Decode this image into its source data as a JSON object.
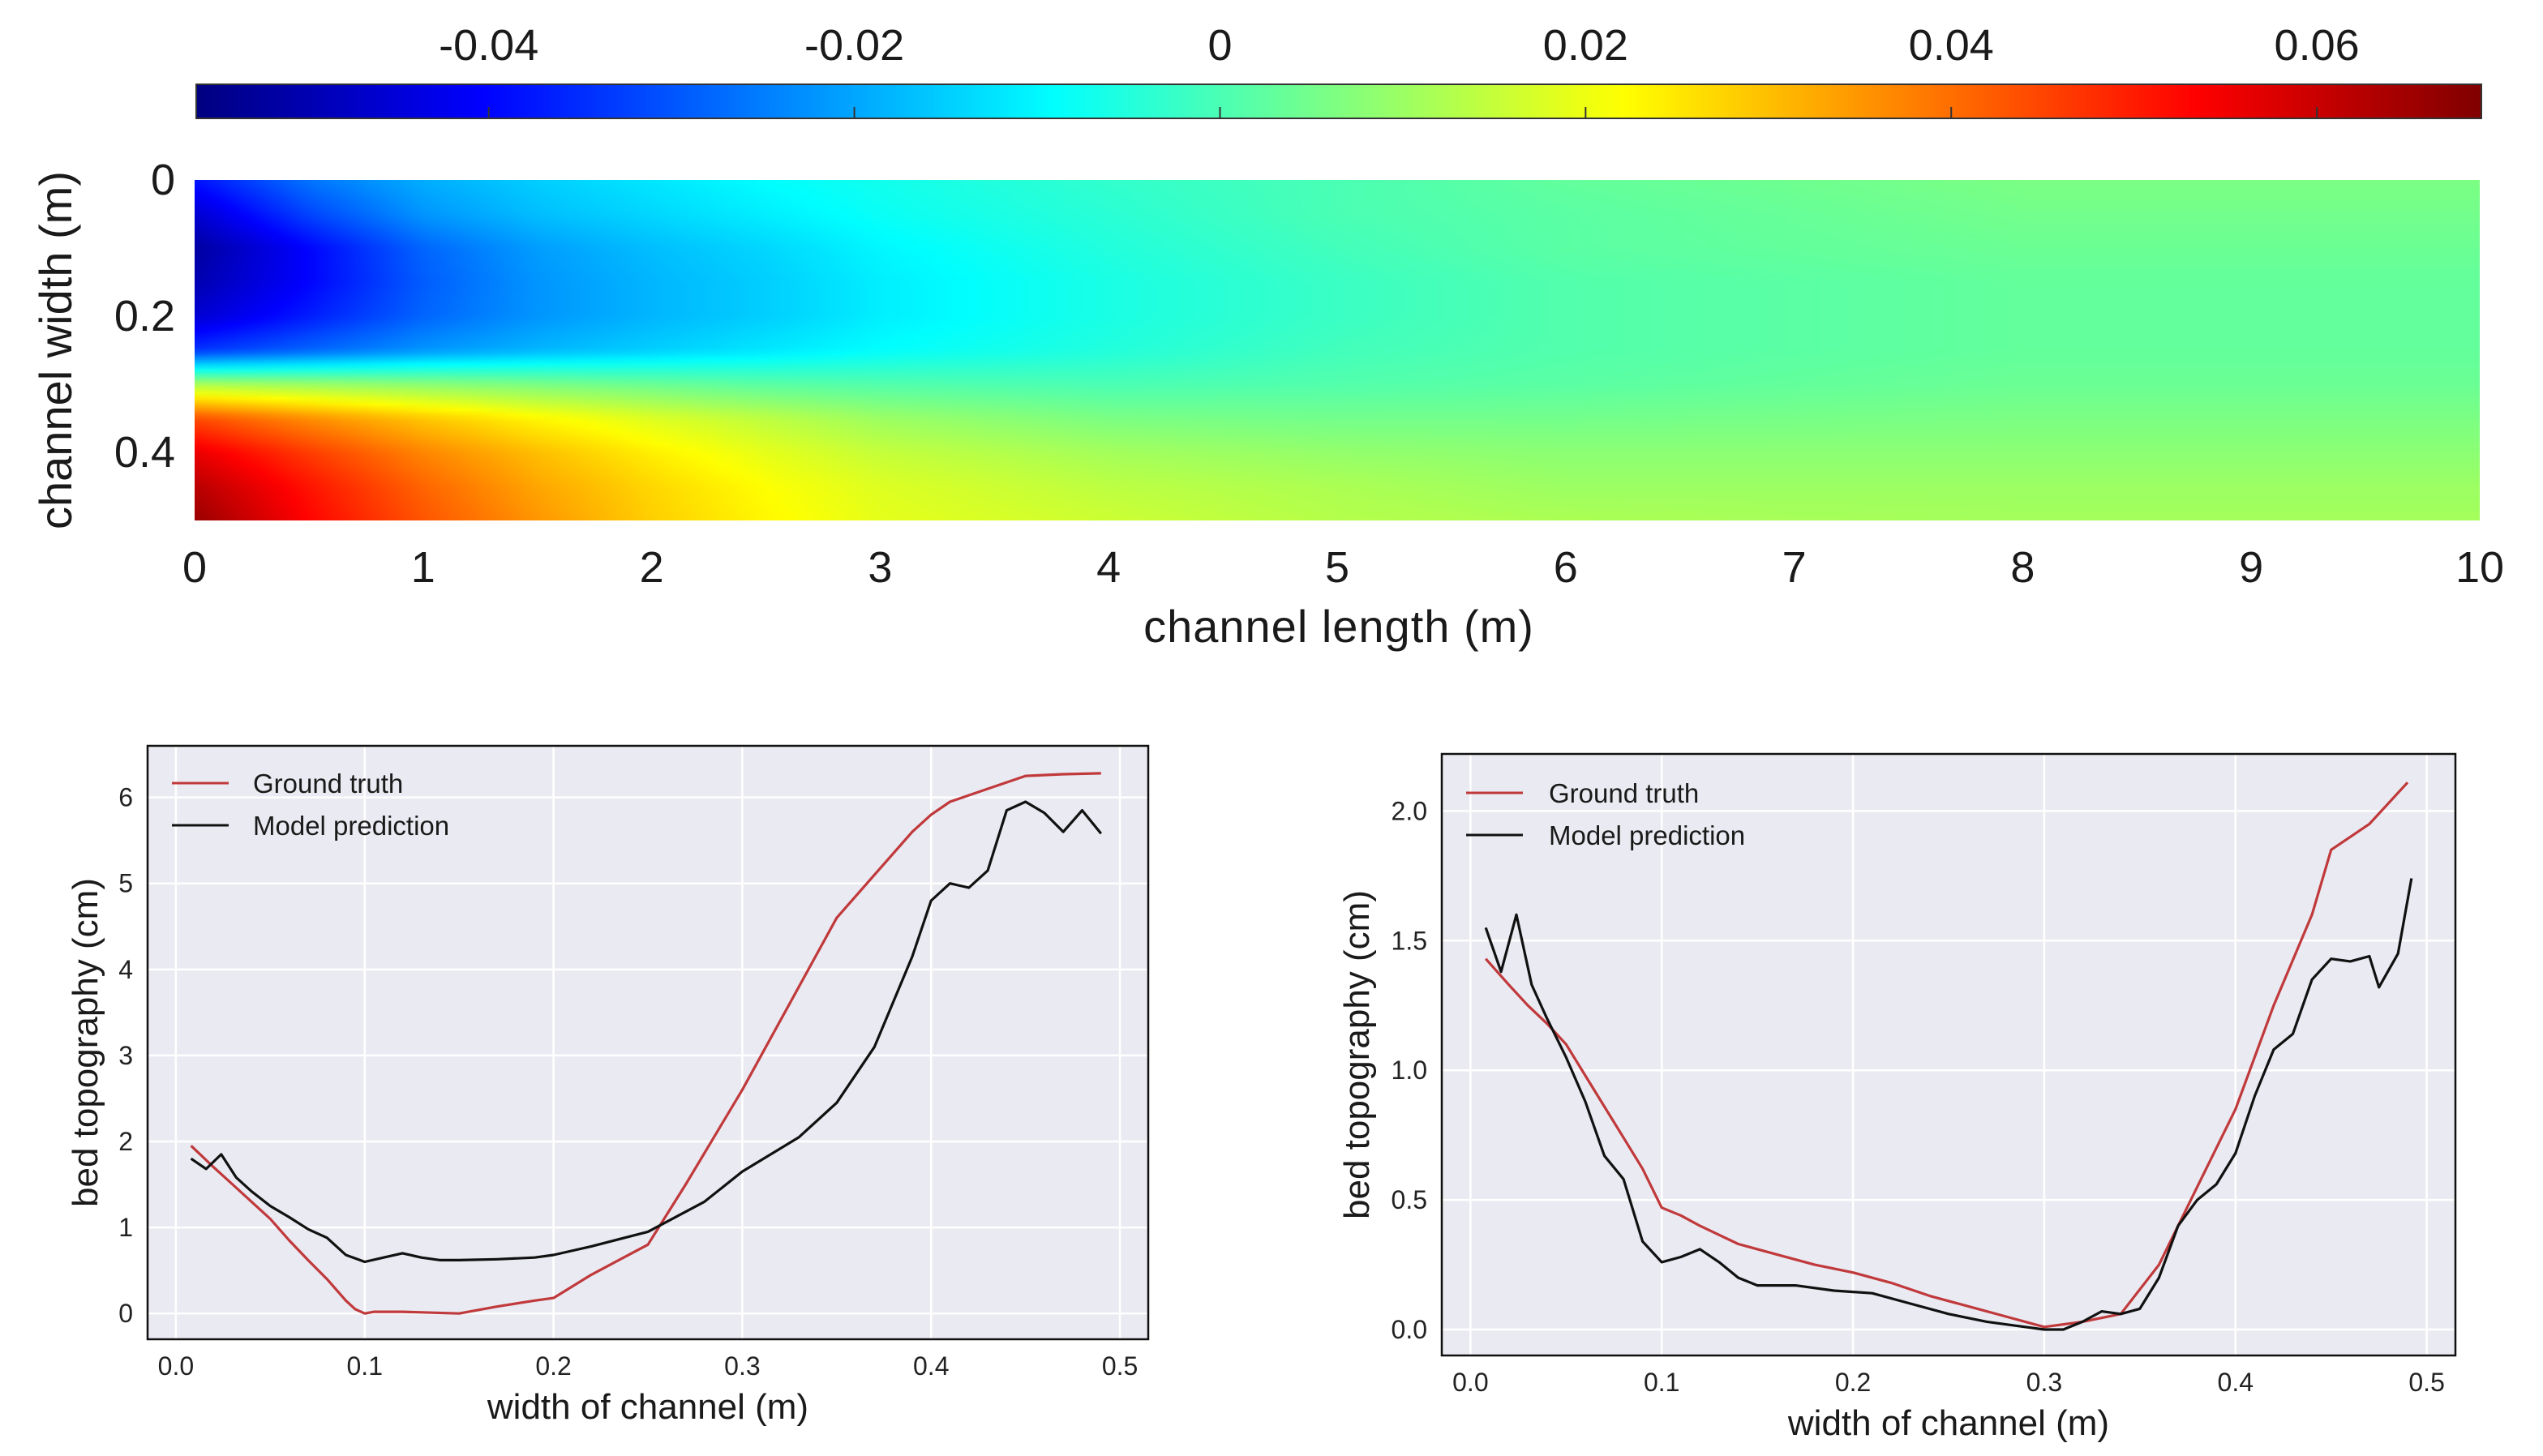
{
  "chart_data": [
    {
      "type": "heatmap",
      "title": "",
      "colorbar": {
        "ticks": [
          -0.04,
          -0.02,
          0,
          0.02,
          0.04,
          0.06
        ],
        "tick_labels": [
          "-0.04",
          "-0.02",
          "0",
          "0.02",
          "0.04",
          "0.06"
        ],
        "range": [
          -0.056,
          0.069
        ],
        "colormap": "jet"
      },
      "xlabel": "channel length (m)",
      "ylabel": "channel width (m)",
      "xlim": [
        0,
        10
      ],
      "ylim": [
        0,
        0.5
      ],
      "xticks": [
        0,
        1,
        2,
        3,
        4,
        5,
        6,
        7,
        8,
        9,
        10
      ],
      "xtick_labels": [
        "0",
        "1",
        "2",
        "3",
        "4",
        "5",
        "6",
        "7",
        "8",
        "9",
        "10"
      ],
      "yticks": [
        0,
        0.2,
        0.4
      ],
      "ytick_labels": [
        "0",
        "0.2",
        "0.4"
      ],
      "field": {
        "x": [
          0,
          0.5,
          1,
          1.5,
          2,
          2.5,
          3,
          4,
          5,
          6,
          8,
          10
        ],
        "y": [
          0,
          0.05,
          0.1,
          0.15,
          0.2,
          0.25,
          0.3,
          0.35,
          0.4,
          0.45,
          0.5
        ],
        "values": [
          [
            -0.038,
            -0.026,
            -0.019,
            -0.015,
            -0.012,
            -0.009,
            -0.007,
            -0.003,
            0.0,
            0.003,
            0.006,
            0.006
          ],
          [
            -0.046,
            -0.032,
            -0.022,
            -0.017,
            -0.014,
            -0.011,
            -0.008,
            -0.004,
            0.0,
            0.002,
            0.005,
            0.005
          ],
          [
            -0.052,
            -0.04,
            -0.028,
            -0.021,
            -0.017,
            -0.014,
            -0.01,
            -0.005,
            -0.001,
            0.002,
            0.004,
            0.004
          ],
          [
            -0.05,
            -0.04,
            -0.029,
            -0.022,
            -0.018,
            -0.015,
            -0.011,
            -0.006,
            -0.002,
            0.001,
            0.003,
            0.003
          ],
          [
            -0.046,
            -0.037,
            -0.028,
            -0.022,
            -0.018,
            -0.015,
            -0.011,
            -0.006,
            -0.002,
            0.001,
            0.003,
            0.003
          ],
          [
            -0.034,
            -0.028,
            -0.022,
            -0.018,
            -0.015,
            -0.012,
            -0.009,
            -0.005,
            -0.001,
            0.001,
            0.003,
            0.003
          ],
          [
            0.012,
            0.01,
            0.008,
            0.006,
            0.004,
            0.002,
            0.001,
            0.0,
            0.001,
            0.002,
            0.004,
            0.004
          ],
          [
            0.044,
            0.036,
            0.029,
            0.023,
            0.018,
            0.014,
            0.01,
            0.006,
            0.005,
            0.005,
            0.006,
            0.006
          ],
          [
            0.056,
            0.046,
            0.037,
            0.03,
            0.024,
            0.019,
            0.015,
            0.011,
            0.009,
            0.008,
            0.008,
            0.008
          ],
          [
            0.062,
            0.051,
            0.041,
            0.033,
            0.027,
            0.022,
            0.018,
            0.014,
            0.012,
            0.01,
            0.01,
            0.01
          ],
          [
            0.066,
            0.053,
            0.043,
            0.035,
            0.028,
            0.023,
            0.019,
            0.016,
            0.013,
            0.012,
            0.011,
            0.011
          ]
        ]
      }
    },
    {
      "type": "line",
      "title": "",
      "xlabel": "width of channel (m)",
      "ylabel": "bed topography (cm)",
      "xlim": [
        -0.015,
        0.515
      ],
      "ylim": [
        -0.3,
        6.6
      ],
      "xticks": [
        0.0,
        0.1,
        0.2,
        0.3,
        0.4,
        0.5
      ],
      "xtick_labels": [
        "0.0",
        "0.1",
        "0.2",
        "0.3",
        "0.4",
        "0.5"
      ],
      "yticks": [
        0,
        1,
        2,
        3,
        4,
        5,
        6
      ],
      "ytick_labels": [
        "0",
        "1",
        "2",
        "3",
        "4",
        "5",
        "6"
      ],
      "grid": true,
      "legend": "top-left",
      "series": [
        {
          "name": "Ground truth",
          "color": "#c0393b",
          "x": [
            0.008,
            0.02,
            0.03,
            0.04,
            0.05,
            0.06,
            0.07,
            0.08,
            0.09,
            0.095,
            0.1,
            0.105,
            0.12,
            0.15,
            0.17,
            0.19,
            0.2,
            0.22,
            0.25,
            0.27,
            0.3,
            0.33,
            0.35,
            0.37,
            0.39,
            0.4,
            0.41,
            0.43,
            0.45,
            0.47,
            0.49
          ],
          "y": [
            1.95,
            1.7,
            1.5,
            1.3,
            1.1,
            0.85,
            0.62,
            0.4,
            0.15,
            0.05,
            0.0,
            0.02,
            0.02,
            0.0,
            0.08,
            0.15,
            0.18,
            0.45,
            0.8,
            1.5,
            2.6,
            3.8,
            4.6,
            5.1,
            5.6,
            5.8,
            5.95,
            6.1,
            6.25,
            6.27,
            6.28
          ]
        },
        {
          "name": "Model prediction",
          "color": "#111111",
          "x": [
            0.008,
            0.016,
            0.024,
            0.032,
            0.04,
            0.05,
            0.06,
            0.07,
            0.08,
            0.09,
            0.1,
            0.11,
            0.12,
            0.13,
            0.14,
            0.15,
            0.17,
            0.19,
            0.2,
            0.22,
            0.25,
            0.28,
            0.3,
            0.33,
            0.35,
            0.37,
            0.39,
            0.4,
            0.41,
            0.42,
            0.43,
            0.44,
            0.45,
            0.46,
            0.47,
            0.48,
            0.49
          ],
          "y": [
            1.8,
            1.68,
            1.85,
            1.58,
            1.42,
            1.25,
            1.12,
            0.98,
            0.88,
            0.68,
            0.6,
            0.65,
            0.7,
            0.65,
            0.62,
            0.62,
            0.63,
            0.65,
            0.68,
            0.78,
            0.95,
            1.3,
            1.65,
            2.05,
            2.45,
            3.1,
            4.15,
            4.8,
            5.0,
            4.95,
            5.15,
            5.85,
            5.95,
            5.82,
            5.6,
            5.85,
            5.58
          ]
        }
      ]
    },
    {
      "type": "line",
      "title": "",
      "xlabel": "width of channel (m)",
      "ylabel": "bed topography (cm)",
      "xlim": [
        -0.015,
        0.515
      ],
      "ylim": [
        -0.1,
        2.22
      ],
      "xticks": [
        0.0,
        0.1,
        0.2,
        0.3,
        0.4,
        0.5
      ],
      "xtick_labels": [
        "0.0",
        "0.1",
        "0.2",
        "0.3",
        "0.4",
        "0.5"
      ],
      "yticks": [
        0.0,
        0.5,
        1.0,
        1.5,
        2.0
      ],
      "ytick_labels": [
        "0.0",
        "0.5",
        "1.0",
        "1.5",
        "2.0"
      ],
      "grid": true,
      "legend": "top-left",
      "series": [
        {
          "name": "Ground truth",
          "color": "#c0393b",
          "x": [
            0.008,
            0.02,
            0.03,
            0.04,
            0.05,
            0.06,
            0.07,
            0.08,
            0.09,
            0.1,
            0.11,
            0.12,
            0.14,
            0.16,
            0.18,
            0.2,
            0.22,
            0.24,
            0.26,
            0.28,
            0.3,
            0.32,
            0.34,
            0.36,
            0.38,
            0.4,
            0.42,
            0.44,
            0.45,
            0.47,
            0.49
          ],
          "y": [
            1.43,
            1.33,
            1.25,
            1.18,
            1.1,
            0.98,
            0.86,
            0.74,
            0.62,
            0.47,
            0.44,
            0.4,
            0.33,
            0.29,
            0.25,
            0.22,
            0.18,
            0.13,
            0.09,
            0.05,
            0.01,
            0.03,
            0.06,
            0.25,
            0.55,
            0.85,
            1.25,
            1.6,
            1.85,
            1.95,
            2.11
          ]
        },
        {
          "name": "Model prediction",
          "color": "#111111",
          "x": [
            0.008,
            0.016,
            0.024,
            0.032,
            0.04,
            0.05,
            0.06,
            0.07,
            0.08,
            0.09,
            0.1,
            0.11,
            0.12,
            0.13,
            0.14,
            0.15,
            0.17,
            0.19,
            0.21,
            0.23,
            0.25,
            0.27,
            0.29,
            0.3,
            0.31,
            0.32,
            0.33,
            0.34,
            0.35,
            0.36,
            0.37,
            0.38,
            0.39,
            0.4,
            0.41,
            0.42,
            0.43,
            0.44,
            0.45,
            0.46,
            0.47,
            0.475,
            0.485,
            0.492
          ],
          "y": [
            1.55,
            1.38,
            1.6,
            1.33,
            1.2,
            1.05,
            0.88,
            0.67,
            0.58,
            0.34,
            0.26,
            0.28,
            0.31,
            0.26,
            0.2,
            0.17,
            0.17,
            0.15,
            0.14,
            0.1,
            0.06,
            0.03,
            0.01,
            0.0,
            0.0,
            0.03,
            0.07,
            0.06,
            0.08,
            0.2,
            0.4,
            0.5,
            0.56,
            0.68,
            0.9,
            1.08,
            1.14,
            1.35,
            1.43,
            1.42,
            1.44,
            1.32,
            1.45,
            1.74
          ]
        }
      ]
    }
  ]
}
